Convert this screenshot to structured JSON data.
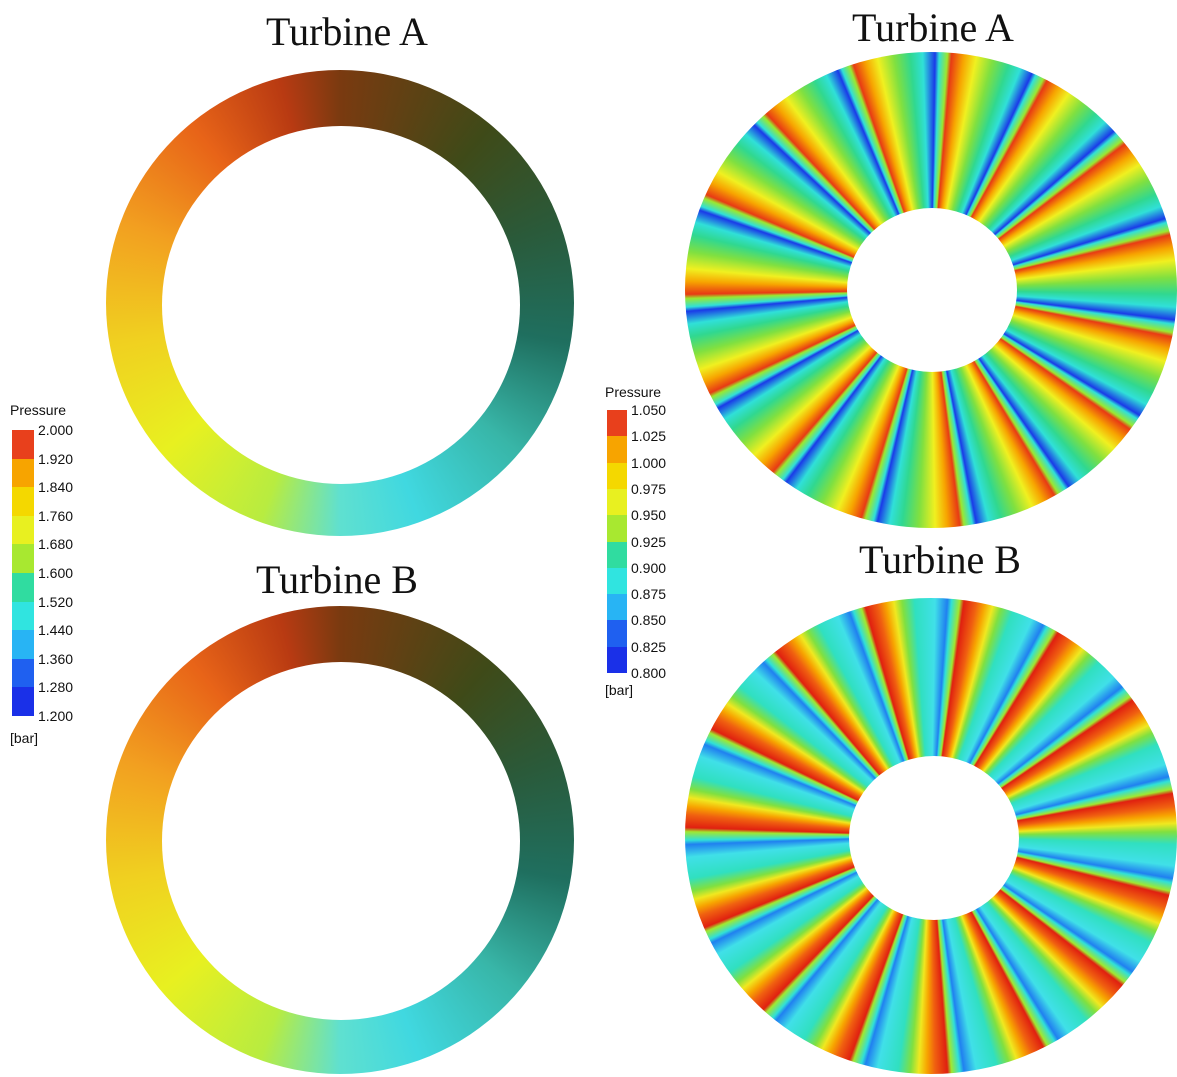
{
  "panels": [
    {
      "title": "Turbine A"
    },
    {
      "title": "Turbine B"
    },
    {
      "title": "Turbine A"
    },
    {
      "title": "Turbine B"
    }
  ],
  "legends": [
    {
      "title": "Pressure",
      "labels": [
        "2.000",
        "1.920",
        "1.840",
        "1.760",
        "1.680",
        "1.600",
        "1.520",
        "1.440",
        "1.360",
        "1.280",
        "1.200"
      ],
      "unit": "[bar]"
    },
    {
      "title": "Pressure",
      "labels": [
        "1.050",
        "1.025",
        "1.000",
        "0.975",
        "0.950",
        "0.925",
        "0.900",
        "0.875",
        "0.850",
        "0.825",
        "0.800"
      ],
      "unit": "[bar]"
    }
  ]
}
